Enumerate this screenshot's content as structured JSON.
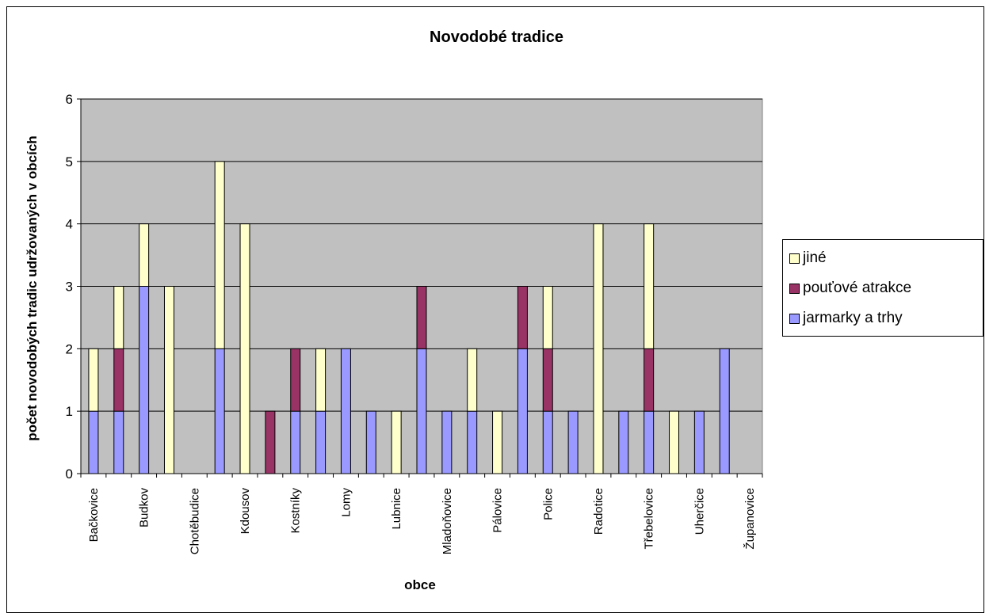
{
  "chart_data": {
    "type": "bar",
    "stacked": true,
    "title": "Novodobé tradice",
    "xlabel": "obce",
    "ylabel": "počet novodobých tradic udržovaných v obcích",
    "ylim": [
      0,
      6
    ],
    "yticks": [
      "0",
      "1",
      "2",
      "3",
      "4",
      "5",
      "6"
    ],
    "grid": true,
    "legend_position": "right",
    "categories": [
      "Bačkovice",
      "",
      "Budkov",
      "",
      "Chotěbudice",
      "",
      "Kdousov",
      "",
      "Kostníky",
      "",
      "Lomy",
      "",
      "Lubnice",
      "",
      "Mladoňovice",
      "",
      "Pálovice",
      "",
      "Police",
      "",
      "Radotice",
      "",
      "Třebelovice",
      "",
      "Uherčice",
      "",
      "Županovice"
    ],
    "series": [
      {
        "name": "jarmarky a trhy",
        "color": "#9999ff",
        "values": [
          1,
          1,
          3,
          0,
          0,
          2,
          0,
          0,
          1,
          1,
          2,
          1,
          0,
          2,
          1,
          1,
          0,
          2,
          1,
          1,
          0,
          1,
          1,
          0,
          1,
          2,
          0
        ]
      },
      {
        "name": "pouťové atrakce",
        "color": "#993366",
        "values": [
          0,
          1,
          0,
          0,
          0,
          0,
          0,
          1,
          1,
          0,
          0,
          0,
          0,
          1,
          0,
          0,
          0,
          1,
          1,
          0,
          0,
          0,
          1,
          0,
          0,
          0,
          0
        ]
      },
      {
        "name": "jiné",
        "color": "#ffffcc",
        "values": [
          1,
          1,
          1,
          3,
          0,
          3,
          4,
          0,
          0,
          1,
          0,
          0,
          1,
          0,
          0,
          1,
          1,
          0,
          1,
          0,
          4,
          0,
          2,
          1,
          0,
          0,
          0
        ]
      }
    ],
    "plot_background": "#c0c0c0"
  },
  "legend": {
    "items": [
      {
        "label": "jiné",
        "color": "#ffffcc"
      },
      {
        "label": "pouťové atrakce",
        "color": "#993366"
      },
      {
        "label": "jarmarky a trhy",
        "color": "#9999ff"
      }
    ]
  }
}
